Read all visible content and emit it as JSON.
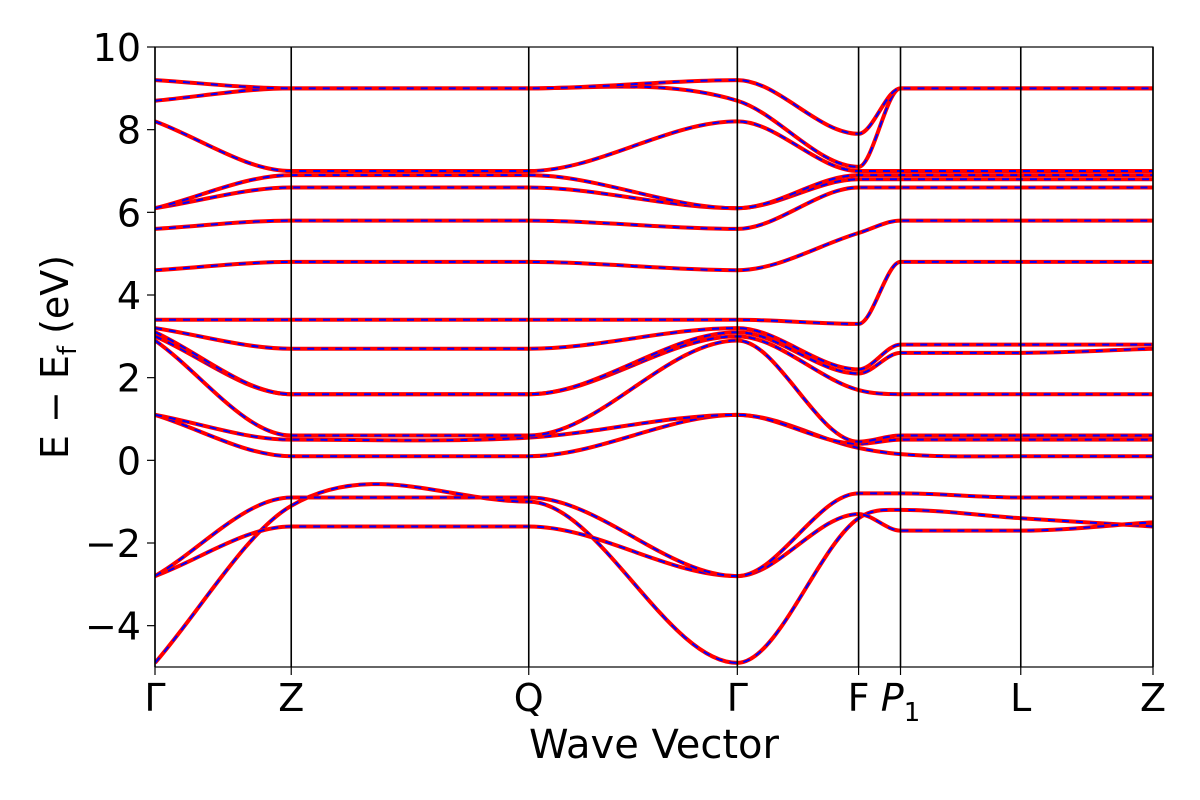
{
  "chart_data": {
    "type": "line",
    "xlabel": "Wave Vector",
    "ylabel": "E − E",
    "ylabel_sub": "f",
    "ylabel_unit": "(eV)",
    "ylim": [
      -5,
      10
    ],
    "yticks": [
      -4,
      -2,
      0,
      2,
      4,
      6,
      8,
      10
    ],
    "ytick_labels": [
      "−4",
      "−2",
      "0",
      "2",
      "4",
      "6",
      "8",
      "10"
    ],
    "xlim": [
      0,
      1
    ],
    "kpoints": [
      {
        "label": "Γ",
        "sub": "",
        "italic": false,
        "x": 0.0
      },
      {
        "label": "Z",
        "sub": "",
        "italic": false,
        "x": 0.1365
      },
      {
        "label": "Q",
        "sub": "",
        "italic": false,
        "x": 0.3745
      },
      {
        "label": "Γ",
        "sub": "",
        "italic": false,
        "x": 0.5835
      },
      {
        "label": "F",
        "sub": "",
        "italic": false,
        "x": 0.705
      },
      {
        "label": "P",
        "sub": "1",
        "italic": true,
        "x": 0.747
      },
      {
        "label": "L",
        "sub": "",
        "italic": false,
        "x": 0.8675
      },
      {
        "label": "Z",
        "sub": "",
        "italic": false,
        "x": 1.0
      }
    ],
    "grid": false,
    "series_styles": [
      {
        "color": "#ff0000",
        "dash": "solid"
      },
      {
        "color": "#0000ff",
        "dash": "dashed"
      }
    ],
    "band_sample_x": [
      0.0,
      0.1365,
      0.3745,
      0.5835,
      0.705,
      0.747,
      0.8675,
      1.0
    ],
    "bands": [
      [
        -4.9,
        -1.1,
        -1.0,
        -4.9,
        -1.4,
        -1.2,
        -1.4,
        -1.6
      ],
      [
        -2.8,
        -1.6,
        -1.6,
        -2.8,
        -1.3,
        -1.7,
        -1.7,
        -1.5
      ],
      [
        -2.8,
        -0.9,
        -0.9,
        -2.8,
        -0.8,
        -0.8,
        -0.9,
        -0.9
      ],
      [
        1.1,
        0.1,
        0.1,
        1.1,
        0.3,
        0.15,
        0.1,
        0.1
      ],
      [
        1.1,
        0.5,
        0.55,
        1.1,
        0.4,
        0.5,
        0.5,
        0.5
      ],
      [
        2.9,
        0.6,
        0.6,
        2.9,
        0.45,
        0.6,
        0.6,
        0.6
      ],
      [
        3.0,
        1.6,
        1.6,
        3.0,
        1.7,
        1.6,
        1.6,
        1.6
      ],
      [
        3.1,
        1.6,
        1.6,
        3.1,
        2.1,
        2.6,
        2.6,
        2.7
      ],
      [
        3.2,
        2.7,
        2.7,
        3.2,
        2.2,
        2.8,
        2.8,
        2.8
      ],
      [
        3.4,
        3.4,
        3.4,
        3.4,
        3.3,
        4.8,
        4.8,
        4.8
      ],
      [
        4.6,
        4.8,
        4.8,
        4.6,
        5.5,
        5.8,
        5.8,
        5.8
      ],
      [
        5.6,
        5.8,
        5.8,
        5.6,
        6.6,
        6.6,
        6.6,
        6.6
      ],
      [
        6.1,
        6.6,
        6.6,
        6.1,
        6.8,
        6.8,
        6.8,
        6.8
      ],
      [
        6.1,
        6.9,
        6.9,
        6.1,
        6.9,
        6.9,
        6.9,
        6.9
      ],
      [
        8.2,
        7.0,
        7.0,
        8.2,
        7.0,
        7.0,
        7.0,
        7.0
      ],
      [
        8.7,
        9.0,
        9.0,
        8.7,
        7.1,
        9.0,
        9.0,
        9.0
      ],
      [
        9.2,
        9.0,
        9.0,
        9.2,
        7.9,
        9.0,
        9.0,
        9.0
      ]
    ]
  }
}
